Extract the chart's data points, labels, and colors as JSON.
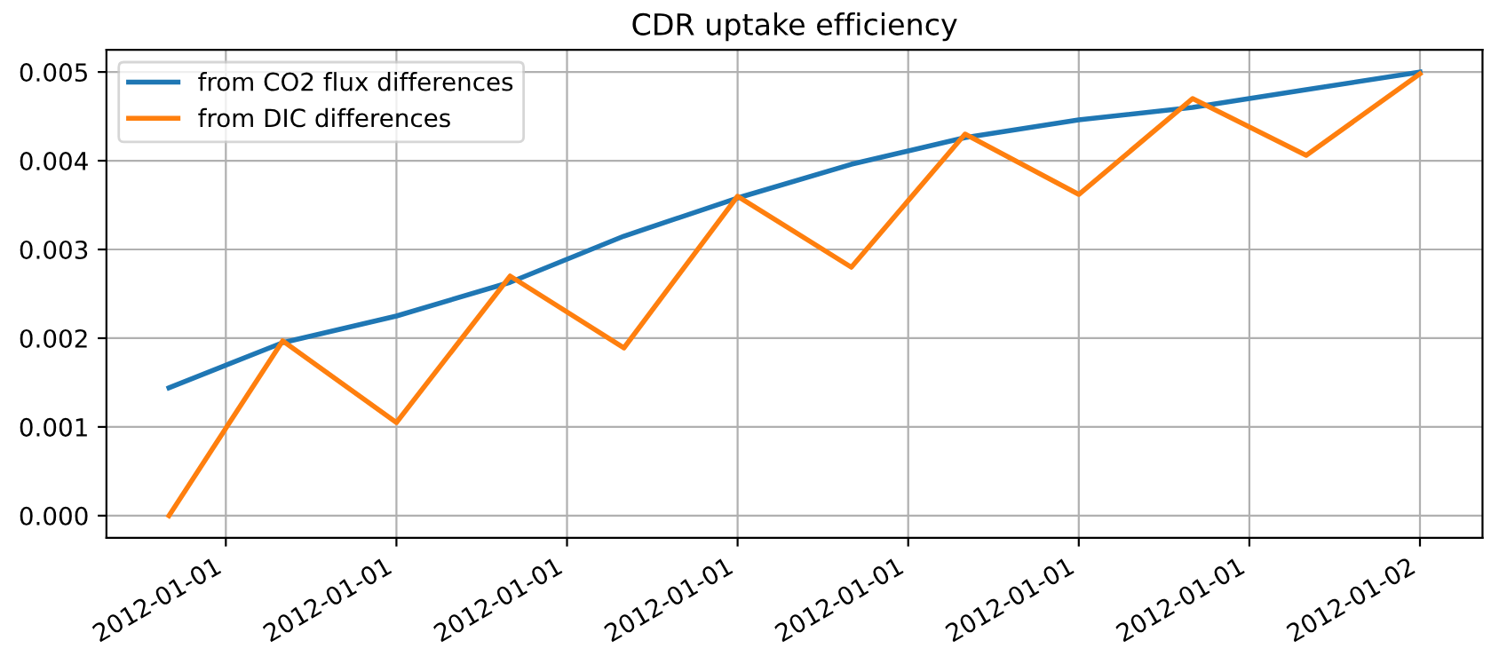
{
  "chart_data": {
    "type": "line",
    "title": "CDR uptake efficiency",
    "x": [
      "2012-01-01T02:00",
      "2012-01-01T04:00",
      "2012-01-01T06:00",
      "2012-01-01T08:00",
      "2012-01-01T10:00",
      "2012-01-01T12:00",
      "2012-01-01T14:00",
      "2012-01-01T16:00",
      "2012-01-01T18:00",
      "2012-01-01T20:00",
      "2012-01-01T22:00",
      "2012-01-02T00:00"
    ],
    "series": [
      {
        "name": "from CO2 flux differences",
        "color": "#1f77b4",
        "values": [
          0.00144,
          0.00195,
          0.00225,
          0.00263,
          0.00315,
          0.00358,
          0.00396,
          0.00426,
          0.00446,
          0.0046,
          0.0048,
          0.005
        ]
      },
      {
        "name": "from DIC differences",
        "color": "#ff7f0e",
        "values": [
          0.0,
          0.00197,
          0.00105,
          0.0027,
          0.00189,
          0.0036,
          0.0028,
          0.0043,
          0.00362,
          0.0047,
          0.00406,
          0.00498
        ]
      }
    ],
    "xlim": [
      "2012-01-01T00:54",
      "2012-01-02T01:06"
    ],
    "xticks": [
      {
        "value": "2012-01-01T03:00",
        "label": "2012-01-01"
      },
      {
        "value": "2012-01-01T06:00",
        "label": "2012-01-01"
      },
      {
        "value": "2012-01-01T09:00",
        "label": "2012-01-01"
      },
      {
        "value": "2012-01-01T12:00",
        "label": "2012-01-01"
      },
      {
        "value": "2012-01-01T15:00",
        "label": "2012-01-01"
      },
      {
        "value": "2012-01-01T18:00",
        "label": "2012-01-01"
      },
      {
        "value": "2012-01-01T21:00",
        "label": "2012-01-01"
      },
      {
        "value": "2012-01-02T00:00",
        "label": "2012-01-02"
      }
    ],
    "ylim": [
      -0.00025,
      0.00525
    ],
    "yticks": [
      {
        "value": 0,
        "label": "0.000"
      },
      {
        "value": 0.001,
        "label": "0.001"
      },
      {
        "value": 0.002,
        "label": "0.002"
      },
      {
        "value": 0.003,
        "label": "0.003"
      },
      {
        "value": 0.004,
        "label": "0.004"
      },
      {
        "value": 0.005,
        "label": "0.005"
      }
    ],
    "grid": true,
    "legend": "top left",
    "marker": "none",
    "line_style": "solid"
  }
}
